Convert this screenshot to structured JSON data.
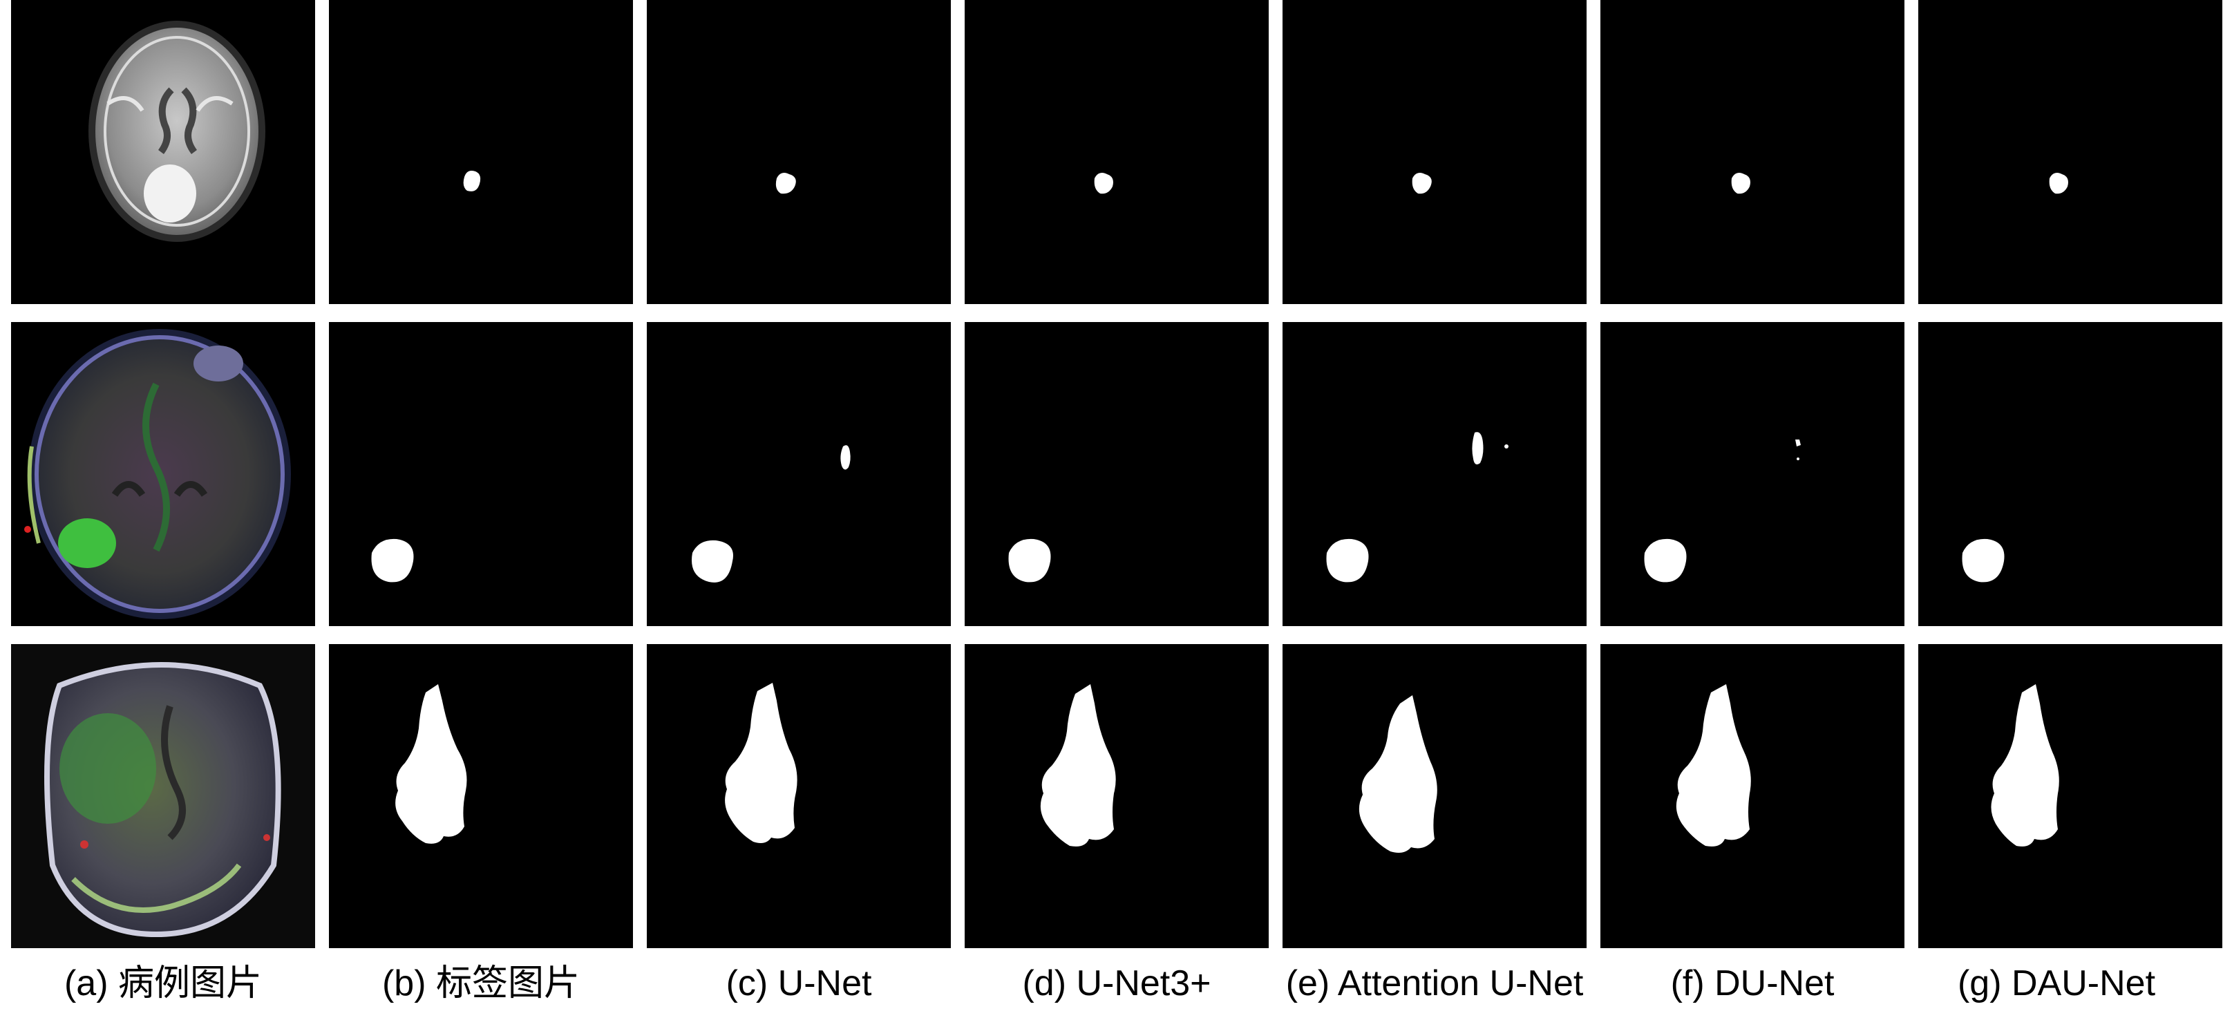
{
  "figure": {
    "columns": [
      {
        "id": "a",
        "caption": "(a) 病例图片"
      },
      {
        "id": "b",
        "caption": "(b) 标签图片"
      },
      {
        "id": "c",
        "caption": "(c) U-Net"
      },
      {
        "id": "d",
        "caption": "(d) U-Net3+"
      },
      {
        "id": "e",
        "caption": "(e) Attention U-Net"
      },
      {
        "id": "f",
        "caption": "(f) DU-Net"
      },
      {
        "id": "g",
        "caption": "(g) DAU-Net"
      }
    ],
    "rows": [
      {
        "id": "case-1",
        "image_style": "grayscale MRI"
      },
      {
        "id": "case-2",
        "image_style": "color MRI"
      },
      {
        "id": "case-3",
        "image_style": "color MRI"
      }
    ],
    "colors": {
      "background": "#000000",
      "mask": "#ffffff",
      "separator": "#ffffff"
    }
  }
}
